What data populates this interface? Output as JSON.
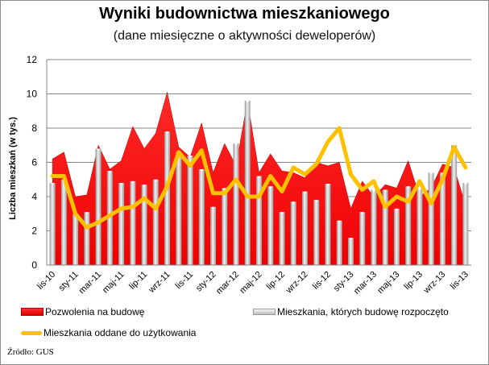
{
  "chart": {
    "title": "Wyniki budownictwa mieszkaniowego",
    "subtitle": "(dane miesięczne o aktywności deweloperów)",
    "source": "Źródło: GUS"
  },
  "colors": {
    "permits": "#ff0000",
    "started": "#bfbfbf",
    "completed": "#ffc000",
    "grid": "#868686"
  },
  "chart_data": {
    "type": "bar",
    "title": "Wyniki budownictwa mieszkaniowego",
    "subtitle": "(dane miesięczne o aktywności deweloperów)",
    "xlabel": "",
    "ylabel": "Liczba mieszkań (w tys.)",
    "ylim": [
      0,
      12
    ],
    "yticks": [
      0,
      2,
      4,
      6,
      8,
      10,
      12
    ],
    "grid": true,
    "legend_position": "bottom",
    "x_tick_labels": [
      "lis-10",
      "sty-11",
      "mar-11",
      "maj-11",
      "lip-11",
      "wrz-11",
      "lis-11",
      "sty-12",
      "mar-12",
      "maj-12",
      "lip-12",
      "wrz-12",
      "lis-12",
      "sty-13",
      "mar-13",
      "maj-13",
      "lip-13",
      "wrz-13",
      "lis-13"
    ],
    "categories": [
      "lis-10",
      "gru-10",
      "sty-11",
      "lut-11",
      "mar-11",
      "kwi-11",
      "maj-11",
      "cze-11",
      "lip-11",
      "sie-11",
      "wrz-11",
      "paź-11",
      "lis-11",
      "gru-11",
      "sty-12",
      "lut-12",
      "mar-12",
      "kwi-12",
      "maj-12",
      "cze-12",
      "lip-12",
      "sie-12",
      "wrz-12",
      "paź-12",
      "lis-12",
      "gru-12",
      "sty-13",
      "lut-13",
      "mar-13",
      "kwi-13",
      "maj-13",
      "cze-13",
      "lip-13",
      "sie-13",
      "wrz-13",
      "paź-13",
      "lis-13"
    ],
    "series": [
      {
        "name": "Pozwolenia na budowę",
        "type": "area",
        "values": [
          6.2,
          6.6,
          4.0,
          4.1,
          7.0,
          5.6,
          6.1,
          8.1,
          6.8,
          7.7,
          10.1,
          6.9,
          6.3,
          8.3,
          5.4,
          7.1,
          5.8,
          9.6,
          5.4,
          6.5,
          5.5,
          5.4,
          5.1,
          6.0,
          5.8,
          6.0,
          3.3,
          4.9,
          4.0,
          4.7,
          4.5,
          6.1,
          4.0,
          4.5,
          5.9,
          5.7,
          3.5
        ]
      },
      {
        "name": "Mieszkania, których budowę rozpoczęto",
        "type": "bar",
        "values": [
          4.8,
          5.0,
          3.0,
          3.1,
          6.8,
          5.5,
          4.8,
          4.9,
          4.7,
          5.0,
          7.8,
          6.6,
          6.4,
          5.6,
          3.4,
          4.5,
          7.1,
          9.6,
          5.2,
          4.6,
          3.1,
          3.7,
          4.3,
          3.8,
          4.75,
          2.6,
          1.6,
          3.1,
          4.4,
          4.4,
          3.3,
          4.6,
          4.5,
          5.4,
          5.4,
          7.0,
          4.8
        ]
      },
      {
        "name": "Mieszkania oddane do użytkowania",
        "type": "line",
        "values": [
          5.2,
          5.2,
          3.0,
          2.2,
          2.5,
          2.9,
          3.3,
          3.4,
          3.9,
          3.3,
          4.6,
          6.6,
          5.8,
          6.7,
          4.2,
          4.2,
          5.0,
          4.0,
          4.0,
          5.2,
          4.3,
          5.7,
          5.3,
          5.9,
          7.2,
          8.0,
          5.3,
          4.4,
          4.9,
          3.4,
          4.0,
          3.7,
          4.9,
          3.6,
          5.0,
          6.9,
          5.7
        ]
      }
    ]
  },
  "legend": {
    "permits": "Pozwolenia na budowę",
    "started": "Mieszkania, których budowę rozpoczęto",
    "completed": "Mieszkania oddane do użytkowania"
  }
}
